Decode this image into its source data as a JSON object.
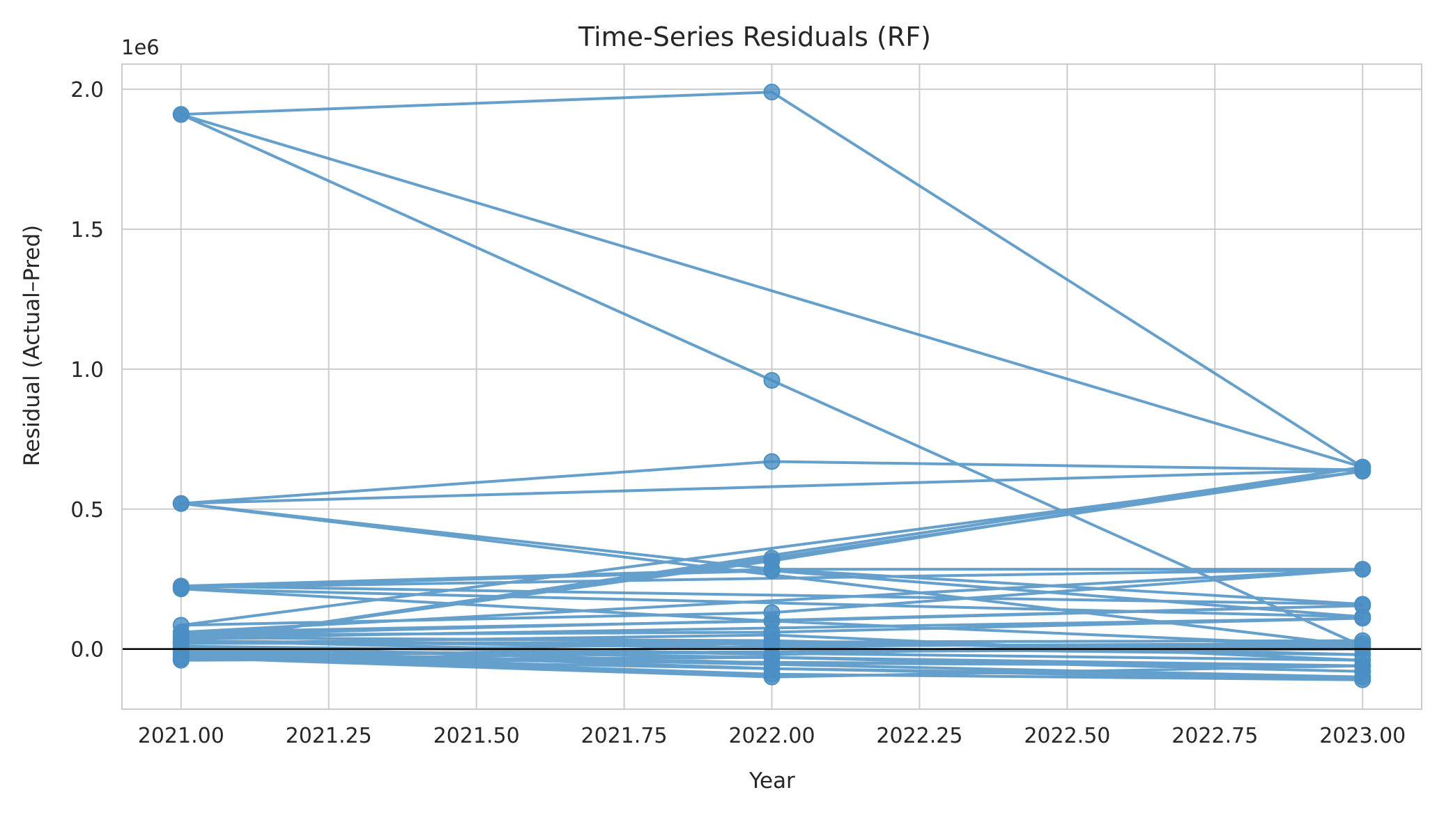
{
  "chart_data": {
    "type": "line",
    "title": "Time-Series Residuals (RF)",
    "xlabel": "Year",
    "ylabel": "Residual (Actual–Pred)",
    "y_offset_label": "1e6",
    "xlim": [
      2020.9,
      2023.1
    ],
    "ylim": [
      -215000,
      2090000
    ],
    "x_ticks": [
      2021.0,
      2021.25,
      2021.5,
      2021.75,
      2022.0,
      2022.25,
      2022.5,
      2022.75,
      2023.0
    ],
    "x_tick_labels": [
      "2021.00",
      "2021.25",
      "2021.50",
      "2021.75",
      "2022.00",
      "2022.25",
      "2022.50",
      "2022.75",
      "2023.00"
    ],
    "y_ticks": [
      0,
      500000,
      1000000,
      1500000,
      2000000
    ],
    "y_tick_labels": [
      "0.0",
      "0.5",
      "1.0",
      "1.5",
      "2.0"
    ],
    "grid": true,
    "reference_line_y": 0,
    "colors": {
      "series": "#4a8fc4",
      "reference": "#000000",
      "grid": "#cccccc",
      "frame": "#cccccc"
    },
    "x": [
      2021,
      2022,
      2023,
      2021,
      2022,
      2023,
      2021,
      2022,
      2023,
      2021,
      2022,
      2023,
      2021,
      2022,
      2023,
      2021,
      2022,
      2023,
      2021,
      2022,
      2023,
      2021,
      2022,
      2023,
      2021,
      2022,
      2023,
      2021,
      2022,
      2023,
      2021,
      2022,
      2023,
      2021,
      2022,
      2023,
      2021,
      2022,
      2023,
      2021,
      2022,
      2023,
      2021,
      2022,
      2023,
      2021,
      2022,
      2023,
      2021,
      2022,
      2023,
      2021,
      2022,
      2023,
      2021,
      2022,
      2023,
      2021,
      2022,
      2023,
      2021,
      2022,
      2023,
      2021,
      2022,
      2023
    ],
    "y": [
      1910000,
      1990000,
      650000,
      1910000,
      960000,
      10000,
      520000,
      670000,
      640000,
      520000,
      285000,
      160000,
      225000,
      285000,
      285000,
      220000,
      280000,
      115000,
      215000,
      100000,
      10000,
      25000,
      315000,
      650000,
      20000,
      325000,
      635000,
      85000,
      130000,
      285000,
      60000,
      100000,
      155000,
      50000,
      60000,
      110000,
      40000,
      30000,
      -20000,
      30000,
      -20000,
      30000,
      20000,
      50000,
      -40000,
      10000,
      -50000,
      -60000,
      0,
      -70000,
      -100000,
      -10000,
      20000,
      0,
      -20000,
      -90000,
      -110000,
      -30000,
      -100000,
      -60000,
      -35000,
      10000,
      20000,
      -40000,
      -30000,
      -80000
    ]
  }
}
